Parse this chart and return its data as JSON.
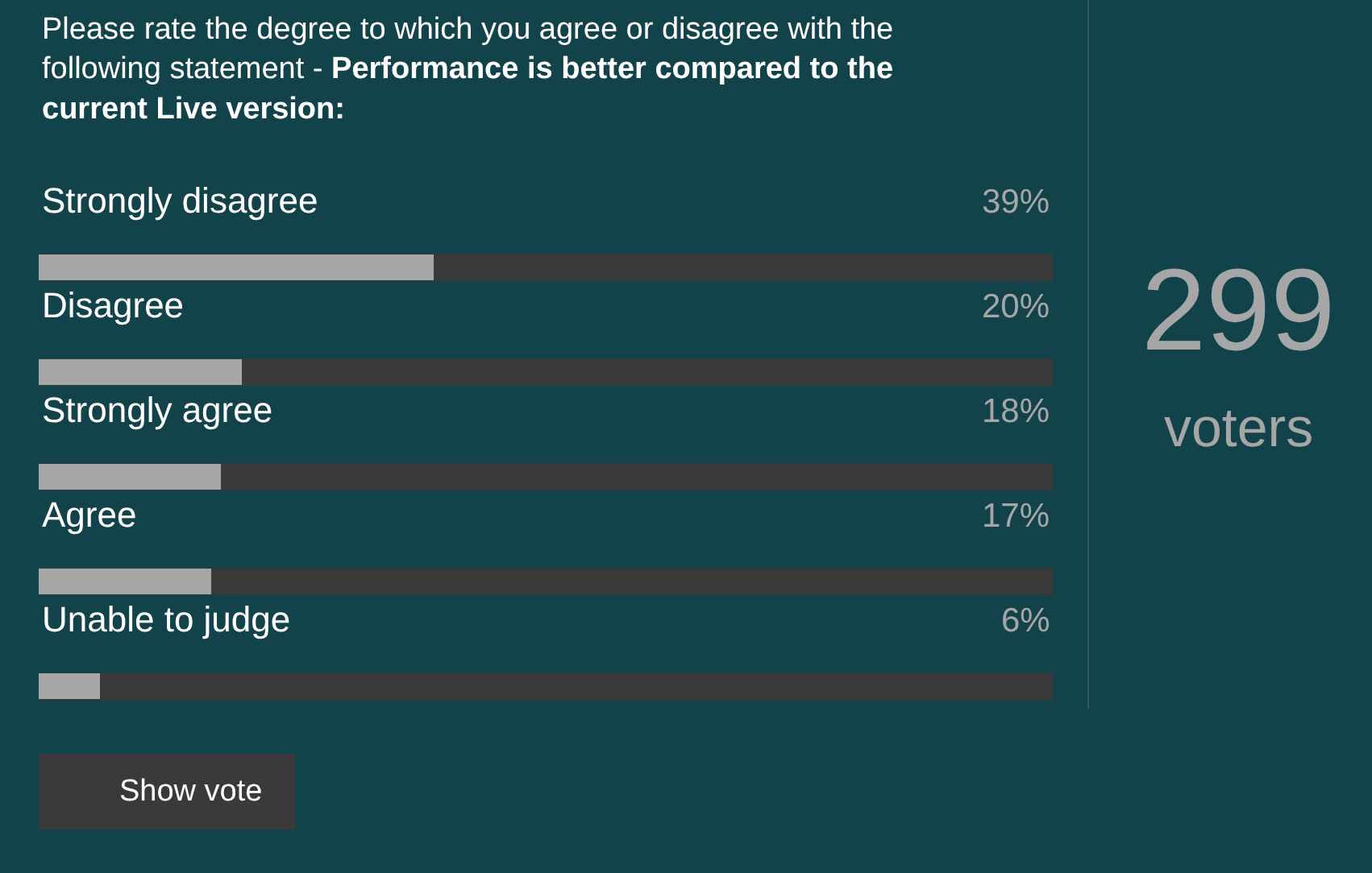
{
  "chart_data": {
    "type": "bar",
    "orientation": "horizontal",
    "title": "Please rate the degree to which you agree or disagree with the following statement -",
    "subtitle": "Performance is better compared to the current Live version:",
    "categories": [
      "Strongly disagree",
      "Disagree",
      "Strongly agree",
      "Agree",
      "Unable to judge"
    ],
    "values": [
      39,
      20,
      18,
      17,
      6
    ],
    "value_labels": [
      "39%",
      "20%",
      "18%",
      "17%",
      "6%"
    ],
    "color": "#a6a6a6",
    "xlim": [
      0,
      100
    ],
    "tick_labels": false,
    "grid": false,
    "legend": false,
    "annotations": [
      "299",
      "voters",
      "Show vote"
    ]
  }
}
